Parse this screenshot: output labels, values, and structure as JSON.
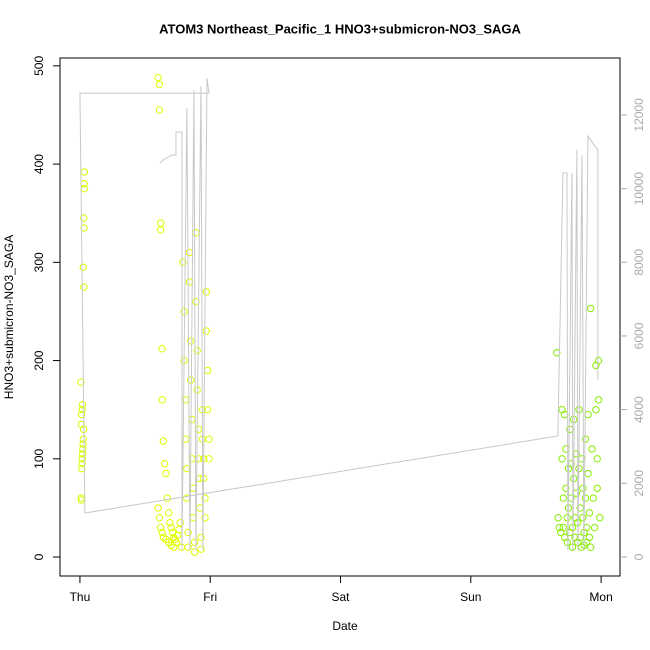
{
  "chart_data": {
    "type": "scatter",
    "title": "ATOM3 Northeast_Pacific_1 HNO3+submicron-NO3_SAGA",
    "x_label": "Date",
    "y_label": "HNO3+submicron-NO3_SAGA",
    "xlim": [
      -0.153,
      4.145
    ],
    "ylim": [
      -19.3,
      508
    ],
    "y2lim": [
      -516,
      13545
    ],
    "xticks": [
      {
        "value": 0,
        "label": "Thu"
      },
      {
        "value": 1,
        "label": "Fri"
      },
      {
        "value": 2,
        "label": "Sat"
      },
      {
        "value": 3,
        "label": "Sun"
      },
      {
        "value": 4,
        "label": "Mon"
      }
    ],
    "yticks": [
      0,
      100,
      200,
      300,
      400,
      500
    ],
    "y2ticks": [
      0,
      2000,
      4000,
      6000,
      8000,
      10000,
      12000
    ],
    "series": [
      {
        "color": "#d4ff00",
        "x": [
          0.01,
          0.012,
          0.014,
          0.016,
          0.018,
          0.02,
          0.022,
          0.024,
          0.026,
          0.028,
          0.01,
          0.013,
          0.017,
          0.021,
          0.008,
          0.03,
          0.025,
          0.032,
          0.03,
          0.034,
          0.032,
          0.034
        ],
        "values": [
          60,
          58,
          90,
          95,
          100,
          105,
          110,
          115,
          120,
          130,
          135,
          145,
          150,
          155,
          178,
          275,
          295,
          335,
          345,
          375,
          380,
          392
        ]
      },
      {
        "color": "#e0ff00",
        "x": [
          0.6,
          0.61,
          0.61,
          0.62,
          0.62,
          0.63,
          0.63,
          0.64,
          0.65,
          0.66,
          0.67,
          0.68,
          0.69,
          0.7,
          0.71,
          0.72,
          0.73,
          0.74,
          0.75,
          0.76,
          0.77,
          0.78,
          0.79,
          0.8,
          0.8,
          0.81,
          0.81,
          0.82,
          0.82,
          0.83,
          0.83,
          0.84,
          0.84,
          0.85,
          0.85,
          0.86,
          0.86,
          0.87,
          0.87,
          0.88,
          0.88,
          0.89,
          0.89,
          0.9,
          0.9,
          0.91,
          0.91,
          0.92,
          0.92,
          0.93,
          0.93,
          0.94,
          0.94,
          0.95,
          0.95,
          0.96,
          0.96,
          0.97,
          0.97,
          0.98,
          0.98,
          0.99,
          0.99,
          0.6,
          0.61,
          0.62,
          0.63,
          0.64,
          0.66,
          0.68,
          0.7,
          0.72
        ],
        "values": [
          488,
          481,
          455,
          340,
          333,
          212,
          160,
          118,
          95,
          85,
          60,
          45,
          35,
          30,
          25,
          20,
          18,
          15,
          22,
          28,
          35,
          10,
          300,
          250,
          200,
          160,
          120,
          90,
          60,
          25,
          10,
          310,
          280,
          220,
          180,
          140,
          100,
          70,
          40,
          15,
          5,
          330,
          260,
          210,
          170,
          130,
          100,
          80,
          50,
          20,
          8,
          150,
          120,
          100,
          80,
          60,
          40,
          270,
          230,
          190,
          150,
          120,
          100,
          50,
          40,
          30,
          25,
          20,
          18,
          15,
          12,
          10
        ]
      },
      {
        "color": "#88ee00",
        "x": [
          3.66,
          3.67,
          3.68,
          3.69,
          3.7,
          3.7,
          3.71,
          3.71,
          3.72,
          3.72,
          3.73,
          3.73,
          3.74,
          3.74,
          3.75,
          3.75,
          3.76,
          3.76,
          3.77,
          3.77,
          3.78,
          3.78,
          3.79,
          3.79,
          3.8,
          3.8,
          3.81,
          3.81,
          3.82,
          3.82,
          3.83,
          3.83,
          3.84,
          3.84,
          3.85,
          3.85,
          3.86,
          3.86,
          3.87,
          3.87,
          3.88,
          3.88,
          3.89,
          3.89,
          3.9,
          3.9,
          3.91,
          3.91,
          3.92,
          3.92,
          3.93,
          3.94,
          3.95,
          3.96,
          3.96,
          3.97,
          3.97,
          3.98,
          3.98,
          3.99
        ],
        "values": [
          208,
          40,
          30,
          25,
          150,
          100,
          60,
          30,
          20,
          145,
          110,
          70,
          40,
          15,
          90,
          50,
          25,
          130,
          95,
          60,
          30,
          10,
          140,
          80,
          40,
          20,
          105,
          65,
          35,
          15,
          150,
          90,
          50,
          20,
          10,
          100,
          70,
          40,
          25,
          12,
          120,
          60,
          30,
          15,
          145,
          85,
          45,
          20,
          10,
          253,
          110,
          60,
          30,
          195,
          150,
          100,
          70,
          200,
          160,
          40
        ]
      },
      {
        "type": "line",
        "axis": "y2",
        "color": "#c8c8c8",
        "x": [
          0.614,
          0.637,
          0.706,
          0.737,
          0.737,
          0.783,
          0.783,
          0.821,
          0.844,
          0.875,
          0.89,
          0.929,
          0.944,
          0.975,
          0.99,
          0,
          0.038,
          3.668,
          3.707,
          3.738,
          3.745,
          3.776,
          3.784,
          3.814,
          3.822,
          3.853,
          3.868,
          3.899,
          3.975,
          3.975
        ],
        "values": [
          10693,
          10774,
          10910,
          10910,
          11535,
          11535,
          190,
          12186,
          190,
          12674,
          190,
          12783,
          190,
          13000,
          12593,
          12593,
          1194,
          3284,
          10422,
          10422,
          190,
          10422,
          190,
          11046,
          190,
          10910,
          190,
          11426,
          11046,
          4804
        ]
      }
    ]
  }
}
